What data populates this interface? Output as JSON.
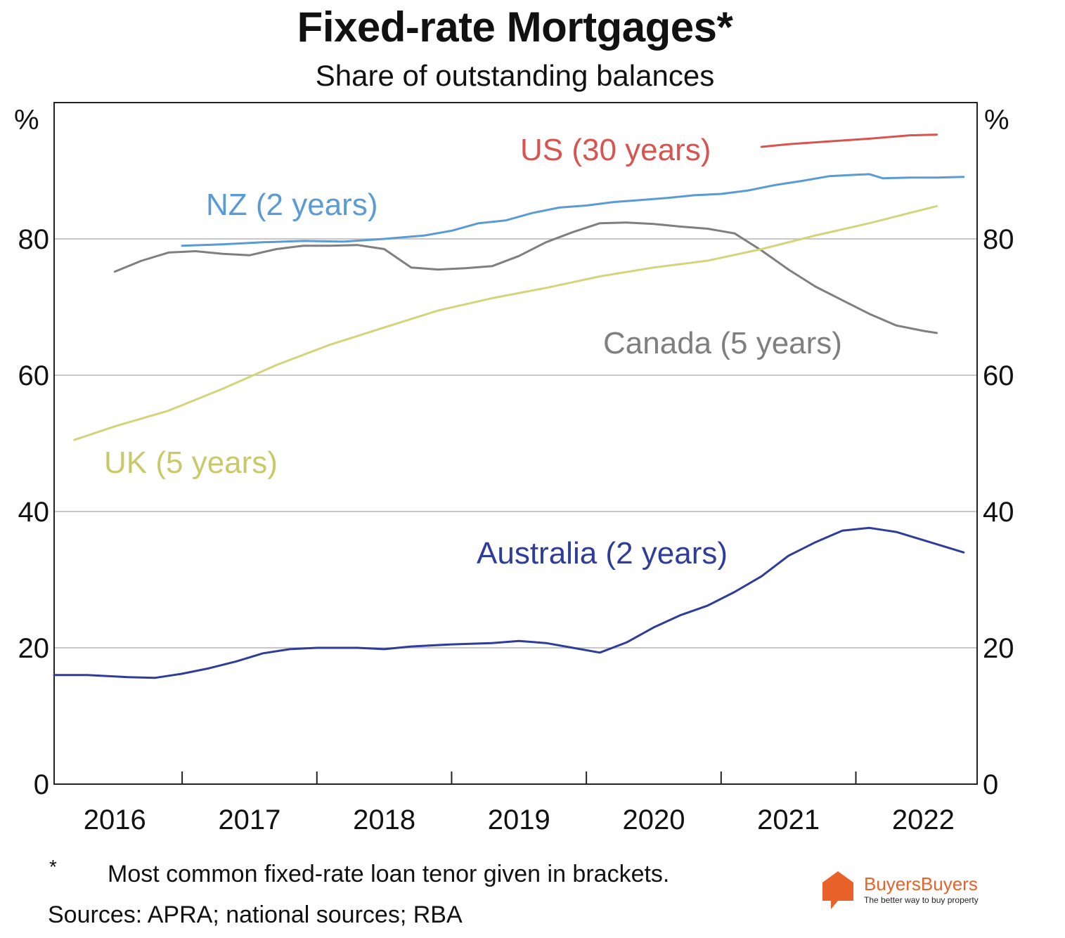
{
  "chart_data": {
    "type": "line",
    "title": "Fixed-rate Mortgages*",
    "subtitle": "Share of outstanding balances",
    "y_unit_left": "%",
    "y_unit_right": "%",
    "ylim": [
      0,
      100
    ],
    "yticks": [
      0,
      20,
      40,
      60,
      80
    ],
    "xlim": [
      2015.55,
      2022.4
    ],
    "xtick_boundaries": [
      2016.5,
      2017.5,
      2018.5,
      2019.5,
      2020.5,
      2021.5
    ],
    "xtick_labels": [
      {
        "label": "2016",
        "at": 2016.0
      },
      {
        "label": "2017",
        "at": 2017.0
      },
      {
        "label": "2018",
        "at": 2018.0
      },
      {
        "label": "2019",
        "at": 2019.0
      },
      {
        "label": "2020",
        "at": 2020.0
      },
      {
        "label": "2021",
        "at": 2021.0
      },
      {
        "label": "2022",
        "at": 2022.0
      }
    ],
    "grid": true,
    "series": [
      {
        "name": "US (30 years)",
        "color": "#d9534f",
        "points": [
          [
            2020.8,
            93.5
          ],
          [
            2021.0,
            93.9
          ],
          [
            2021.3,
            94.3
          ],
          [
            2021.6,
            94.7
          ],
          [
            2021.9,
            95.2
          ],
          [
            2022.1,
            95.3
          ]
        ]
      },
      {
        "name": "NZ (2 years)",
        "color": "#5b9bd5",
        "points": [
          [
            2016.5,
            79.0
          ],
          [
            2016.8,
            79.2
          ],
          [
            2017.1,
            79.5
          ],
          [
            2017.4,
            79.7
          ],
          [
            2017.7,
            79.6
          ],
          [
            2018.0,
            80.0
          ],
          [
            2018.3,
            80.5
          ],
          [
            2018.5,
            81.2
          ],
          [
            2018.7,
            82.3
          ],
          [
            2018.9,
            82.7
          ],
          [
            2019.1,
            83.8
          ],
          [
            2019.3,
            84.6
          ],
          [
            2019.5,
            84.9
          ],
          [
            2019.7,
            85.4
          ],
          [
            2019.9,
            85.7
          ],
          [
            2020.1,
            86.0
          ],
          [
            2020.3,
            86.4
          ],
          [
            2020.5,
            86.6
          ],
          [
            2020.7,
            87.1
          ],
          [
            2020.9,
            87.9
          ],
          [
            2021.1,
            88.5
          ],
          [
            2021.3,
            89.2
          ],
          [
            2021.5,
            89.4
          ],
          [
            2021.6,
            89.5
          ],
          [
            2021.7,
            88.9
          ],
          [
            2021.9,
            89.0
          ],
          [
            2022.1,
            89.0
          ],
          [
            2022.3,
            89.1
          ]
        ]
      },
      {
        "name": "Canada (5 years)",
        "color": "#7f7f7f",
        "points": [
          [
            2016.0,
            75.2
          ],
          [
            2016.2,
            76.8
          ],
          [
            2016.4,
            78.0
          ],
          [
            2016.6,
            78.2
          ],
          [
            2016.8,
            77.8
          ],
          [
            2017.0,
            77.6
          ],
          [
            2017.2,
            78.5
          ],
          [
            2017.4,
            79.0
          ],
          [
            2017.6,
            79.0
          ],
          [
            2017.8,
            79.1
          ],
          [
            2018.0,
            78.5
          ],
          [
            2018.2,
            75.8
          ],
          [
            2018.4,
            75.5
          ],
          [
            2018.6,
            75.7
          ],
          [
            2018.8,
            76.0
          ],
          [
            2019.0,
            77.5
          ],
          [
            2019.2,
            79.5
          ],
          [
            2019.4,
            81.0
          ],
          [
            2019.6,
            82.3
          ],
          [
            2019.8,
            82.4
          ],
          [
            2020.0,
            82.2
          ],
          [
            2020.2,
            81.8
          ],
          [
            2020.4,
            81.5
          ],
          [
            2020.6,
            80.8
          ],
          [
            2020.8,
            78.3
          ],
          [
            2021.0,
            75.5
          ],
          [
            2021.2,
            73.0
          ],
          [
            2021.4,
            71.0
          ],
          [
            2021.6,
            69.0
          ],
          [
            2021.8,
            67.3
          ],
          [
            2022.0,
            66.5
          ],
          [
            2022.1,
            66.2
          ]
        ]
      },
      {
        "name": "UK (5 years)",
        "color": "#d4d47a",
        "points": [
          [
            2015.7,
            50.5
          ],
          [
            2016.0,
            52.5
          ],
          [
            2016.4,
            54.8
          ],
          [
            2016.8,
            58.0
          ],
          [
            2017.2,
            61.5
          ],
          [
            2017.6,
            64.5
          ],
          [
            2018.0,
            67.0
          ],
          [
            2018.4,
            69.5
          ],
          [
            2018.8,
            71.3
          ],
          [
            2019.2,
            72.8
          ],
          [
            2019.6,
            74.5
          ],
          [
            2020.0,
            75.8
          ],
          [
            2020.4,
            76.8
          ],
          [
            2020.8,
            78.5
          ],
          [
            2021.2,
            80.5
          ],
          [
            2021.6,
            82.3
          ],
          [
            2021.9,
            83.8
          ],
          [
            2022.1,
            84.8
          ]
        ]
      },
      {
        "name": "Australia (2 years)",
        "color": "#2e3c9a",
        "points": [
          [
            2015.55,
            16.0
          ],
          [
            2015.8,
            16.0
          ],
          [
            2016.1,
            15.7
          ],
          [
            2016.3,
            15.6
          ],
          [
            2016.5,
            16.2
          ],
          [
            2016.7,
            17.0
          ],
          [
            2016.9,
            18.0
          ],
          [
            2017.1,
            19.2
          ],
          [
            2017.3,
            19.8
          ],
          [
            2017.5,
            20.0
          ],
          [
            2017.8,
            20.0
          ],
          [
            2018.0,
            19.8
          ],
          [
            2018.2,
            20.2
          ],
          [
            2018.5,
            20.5
          ],
          [
            2018.8,
            20.7
          ],
          [
            2019.0,
            21.0
          ],
          [
            2019.2,
            20.7
          ],
          [
            2019.4,
            20.0
          ],
          [
            2019.6,
            19.3
          ],
          [
            2019.8,
            20.8
          ],
          [
            2020.0,
            23.0
          ],
          [
            2020.2,
            24.8
          ],
          [
            2020.4,
            26.2
          ],
          [
            2020.6,
            28.2
          ],
          [
            2020.8,
            30.5
          ],
          [
            2021.0,
            33.5
          ],
          [
            2021.2,
            35.5
          ],
          [
            2021.4,
            37.2
          ],
          [
            2021.6,
            37.6
          ],
          [
            2021.8,
            37.0
          ],
          [
            2022.0,
            35.8
          ],
          [
            2022.3,
            34.0
          ]
        ]
      }
    ]
  },
  "labels": {
    "us": "US (30 years)",
    "nz": "NZ (2 years)",
    "canada": "Canada (5 years)",
    "uk": "UK (5 years)",
    "australia": "Australia (2 years)"
  },
  "footnote": {
    "mark": "*",
    "text": "Most common fixed-rate loan tenor given in brackets.",
    "sources": "Sources: APRA; national sources; RBA"
  },
  "brand": {
    "name": "BuyersBuyers",
    "tagline": "The better way to buy property",
    "color": "#e8622a"
  }
}
